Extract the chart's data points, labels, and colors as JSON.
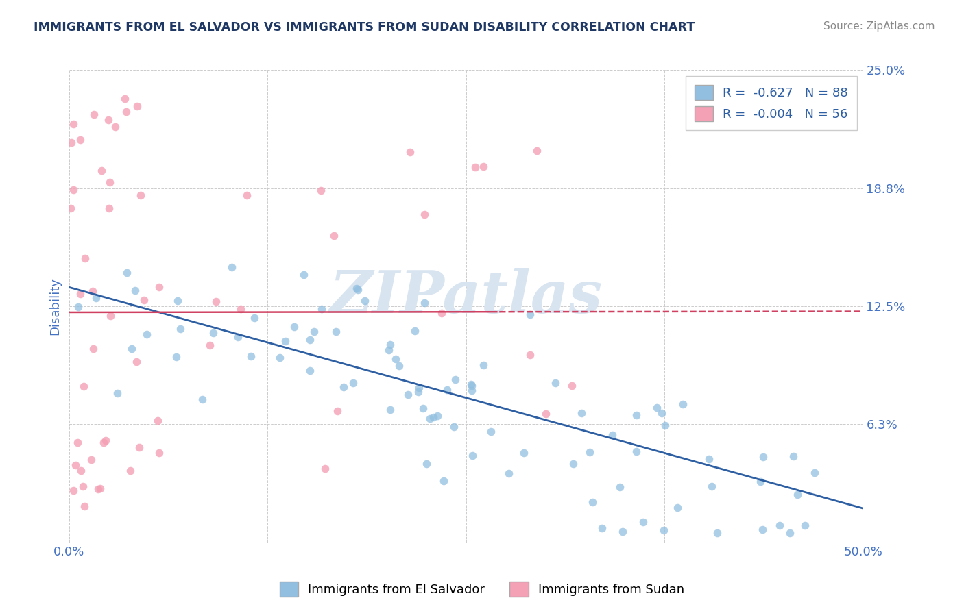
{
  "title": "IMMIGRANTS FROM EL SALVADOR VS IMMIGRANTS FROM SUDAN DISABILITY CORRELATION CHART",
  "source_text": "Source: ZipAtlas.com",
  "ylabel": "Disability",
  "xlim": [
    0.0,
    0.5
  ],
  "ylim": [
    0.0,
    0.25
  ],
  "xtick_positions": [
    0.0,
    0.125,
    0.25,
    0.375,
    0.5
  ],
  "xticklabels": [
    "0.0%",
    "",
    "",
    "",
    "50.0%"
  ],
  "ytick_positions": [
    0.0,
    0.0625,
    0.125,
    0.1875,
    0.25
  ],
  "ytick_labels": [
    "",
    "6.3%",
    "12.5%",
    "18.8%",
    "25.0%"
  ],
  "el_salvador_color": "#92BFE0",
  "sudan_color": "#F4A0B5",
  "el_salvador_line_color": "#2E5FA3",
  "sudan_line_color": "#D04060",
  "legend_label_es": "R =  -0.627   N = 88",
  "legend_label_sud": "R =  -0.004   N = 56",
  "legend_text_color": "#2E5FA3",
  "bottom_legend_es": "Immigrants from El Salvador",
  "bottom_legend_sud": "Immigrants from Sudan",
  "watermark": "ZIPatlas",
  "watermark_color": "#D8E4F0",
  "background_color": "#FFFFFF",
  "grid_color": "#CCCCCC",
  "title_color": "#1F3864",
  "tick_label_color": "#4472C4",
  "es_line_start_y": 0.135,
  "es_line_end_y": 0.018,
  "sud_line_y": 0.122,
  "sud_line_end_y": 0.122
}
